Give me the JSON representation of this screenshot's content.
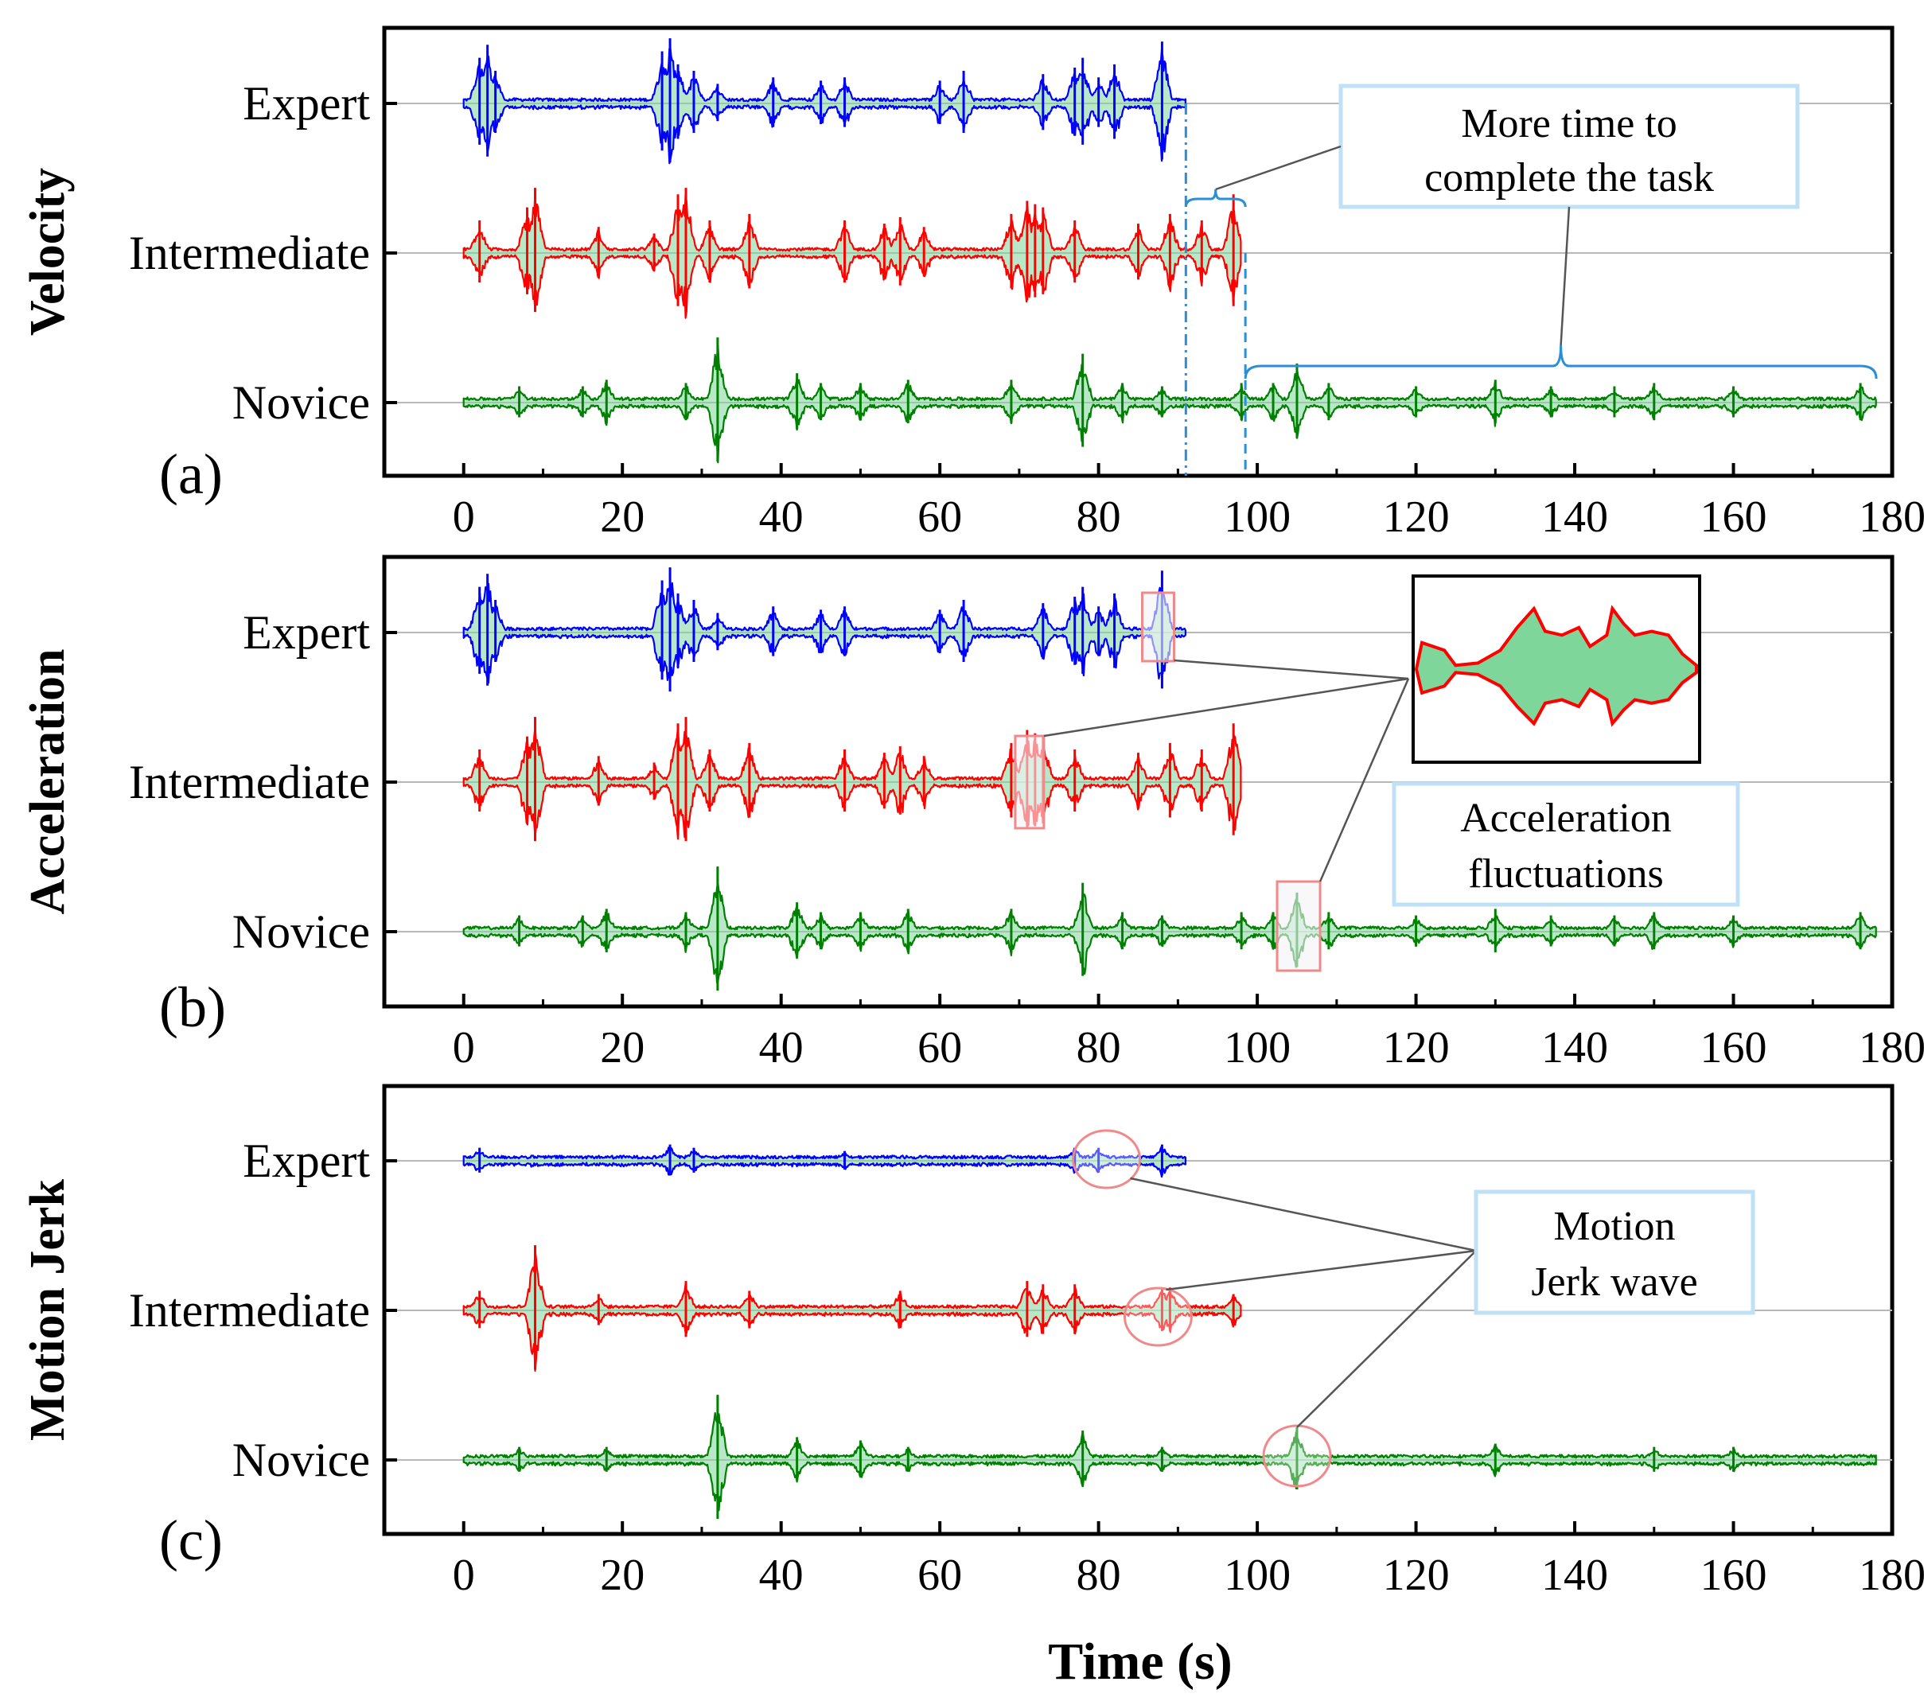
{
  "chart_data": {
    "type": "line",
    "xlabel": "Time (s)",
    "xlim": [
      -10,
      180
    ],
    "xticks": [
      "0",
      "20",
      "40",
      "60",
      "80",
      "100",
      "120",
      "140",
      "160",
      "180"
    ],
    "categories": [
      "Expert",
      "Intermediate",
      "Novice"
    ],
    "series_colors": {
      "Expert": "#0000ff",
      "Intermediate": "#ff0000",
      "Novice": "#008000"
    },
    "fill_color": "#7fd69a",
    "panels": [
      {
        "tag": "(a)",
        "ylabel": "Velocity",
        "series": [
          {
            "name": "Expert",
            "end_time": 91,
            "spikes": [
              [
                2,
                0.7
              ],
              [
                3,
                0.9
              ],
              [
                4,
                0.5
              ],
              [
                25,
                0.8
              ],
              [
                26,
                1.0
              ],
              [
                27,
                0.6
              ],
              [
                29,
                0.5
              ],
              [
                32,
                0.3
              ],
              [
                39,
                0.4
              ],
              [
                45,
                0.35
              ],
              [
                48,
                0.4
              ],
              [
                60,
                0.35
              ],
              [
                63,
                0.5
              ],
              [
                73,
                0.45
              ],
              [
                77,
                0.55
              ],
              [
                78,
                0.7
              ],
              [
                80,
                0.4
              ],
              [
                82,
                0.6
              ],
              [
                88,
                0.95
              ]
            ]
          },
          {
            "name": "Intermediate",
            "end_time": 98,
            "spikes": [
              [
                2,
                0.5
              ],
              [
                8,
                0.7
              ],
              [
                9,
                1.0
              ],
              [
                17,
                0.4
              ],
              [
                24,
                0.3
              ],
              [
                27,
                0.9
              ],
              [
                28,
                1.0
              ],
              [
                31,
                0.5
              ],
              [
                36,
                0.6
              ],
              [
                48,
                0.5
              ],
              [
                53,
                0.45
              ],
              [
                55,
                0.55
              ],
              [
                58,
                0.4
              ],
              [
                69,
                0.6
              ],
              [
                71,
                0.8
              ],
              [
                72,
                0.75
              ],
              [
                73,
                0.7
              ],
              [
                77,
                0.5
              ],
              [
                85,
                0.45
              ],
              [
                89,
                0.6
              ],
              [
                93,
                0.5
              ],
              [
                97,
                0.9
              ]
            ]
          },
          {
            "name": "Novice",
            "end_time": 178,
            "spikes": [
              [
                7,
                0.25
              ],
              [
                15,
                0.25
              ],
              [
                18,
                0.35
              ],
              [
                28,
                0.3
              ],
              [
                32,
                1.0
              ],
              [
                42,
                0.45
              ],
              [
                45,
                0.3
              ],
              [
                50,
                0.3
              ],
              [
                56,
                0.35
              ],
              [
                69,
                0.35
              ],
              [
                78,
                0.75
              ],
              [
                83,
                0.3
              ],
              [
                88,
                0.25
              ],
              [
                98,
                0.3
              ],
              [
                102,
                0.3
              ],
              [
                105,
                0.6
              ],
              [
                109,
                0.3
              ],
              [
                120,
                0.25
              ],
              [
                130,
                0.35
              ],
              [
                137,
                0.25
              ],
              [
                145,
                0.25
              ],
              [
                150,
                0.3
              ],
              [
                160,
                0.25
              ],
              [
                176,
                0.3
              ]
            ]
          }
        ],
        "annotations": [
          {
            "text": "More time to complete the task",
            "lines": [
              "More time to",
              "complete the task"
            ]
          }
        ]
      },
      {
        "tag": "(b)",
        "ylabel": "Acceleration",
        "series": [
          {
            "name": "Expert",
            "end_time": 91,
            "spikes": [
              [
                2,
                0.7
              ],
              [
                3,
                0.9
              ],
              [
                4,
                0.5
              ],
              [
                25,
                0.8
              ],
              [
                26,
                1.0
              ],
              [
                27,
                0.6
              ],
              [
                29,
                0.5
              ],
              [
                32,
                0.3
              ],
              [
                39,
                0.4
              ],
              [
                45,
                0.35
              ],
              [
                48,
                0.4
              ],
              [
                60,
                0.35
              ],
              [
                63,
                0.5
              ],
              [
                73,
                0.45
              ],
              [
                77,
                0.55
              ],
              [
                78,
                0.7
              ],
              [
                80,
                0.4
              ],
              [
                82,
                0.6
              ],
              [
                88,
                0.95
              ]
            ]
          },
          {
            "name": "Intermediate",
            "end_time": 98,
            "spikes": [
              [
                2,
                0.5
              ],
              [
                8,
                0.7
              ],
              [
                9,
                1.0
              ],
              [
                17,
                0.4
              ],
              [
                24,
                0.3
              ],
              [
                27,
                0.9
              ],
              [
                28,
                1.0
              ],
              [
                31,
                0.5
              ],
              [
                36,
                0.6
              ],
              [
                48,
                0.5
              ],
              [
                53,
                0.45
              ],
              [
                55,
                0.55
              ],
              [
                58,
                0.4
              ],
              [
                69,
                0.6
              ],
              [
                71,
                0.8
              ],
              [
                72,
                0.75
              ],
              [
                73,
                0.7
              ],
              [
                77,
                0.5
              ],
              [
                85,
                0.45
              ],
              [
                89,
                0.6
              ],
              [
                93,
                0.5
              ],
              [
                97,
                0.9
              ]
            ]
          },
          {
            "name": "Novice",
            "end_time": 178,
            "spikes": [
              [
                7,
                0.25
              ],
              [
                15,
                0.25
              ],
              [
                18,
                0.35
              ],
              [
                28,
                0.3
              ],
              [
                32,
                1.0
              ],
              [
                42,
                0.45
              ],
              [
                45,
                0.3
              ],
              [
                50,
                0.3
              ],
              [
                56,
                0.35
              ],
              [
                69,
                0.35
              ],
              [
                78,
                0.75
              ],
              [
                83,
                0.3
              ],
              [
                88,
                0.25
              ],
              [
                98,
                0.3
              ],
              [
                102,
                0.3
              ],
              [
                105,
                0.6
              ],
              [
                109,
                0.3
              ],
              [
                120,
                0.25
              ],
              [
                130,
                0.35
              ],
              [
                137,
                0.25
              ],
              [
                145,
                0.25
              ],
              [
                150,
                0.3
              ],
              [
                160,
                0.25
              ],
              [
                176,
                0.3
              ]
            ]
          }
        ],
        "annotations": [
          {
            "text": "Acceleration fluctuations",
            "lines": [
              "Acceleration",
              "fluctuations"
            ]
          }
        ]
      },
      {
        "tag": "(c)",
        "ylabel": "Motion Jerk",
        "series": [
          {
            "name": "Expert",
            "end_time": 91,
            "spikes": [
              [
                2,
                0.2
              ],
              [
                26,
                0.25
              ],
              [
                29,
                0.2
              ],
              [
                48,
                0.15
              ],
              [
                77,
                0.2
              ],
              [
                80,
                0.2
              ],
              [
                88,
                0.25
              ]
            ]
          },
          {
            "name": "Intermediate",
            "end_time": 98,
            "spikes": [
              [
                2,
                0.3
              ],
              [
                9,
                1.0
              ],
              [
                17,
                0.25
              ],
              [
                28,
                0.45
              ],
              [
                36,
                0.3
              ],
              [
                55,
                0.3
              ],
              [
                71,
                0.45
              ],
              [
                73,
                0.4
              ],
              [
                77,
                0.4
              ],
              [
                88,
                0.35
              ],
              [
                89,
                0.35
              ],
              [
                97,
                0.25
              ]
            ]
          },
          {
            "name": "Novice",
            "end_time": 178,
            "spikes": [
              [
                7,
                0.2
              ],
              [
                18,
                0.2
              ],
              [
                32,
                1.0
              ],
              [
                42,
                0.35
              ],
              [
                50,
                0.3
              ],
              [
                56,
                0.2
              ],
              [
                78,
                0.45
              ],
              [
                88,
                0.2
              ],
              [
                105,
                0.5
              ],
              [
                130,
                0.25
              ],
              [
                150,
                0.2
              ],
              [
                160,
                0.2
              ]
            ]
          }
        ],
        "annotations": [
          {
            "text": "Motion Jerk wave",
            "lines": [
              "Motion",
              "Jerk wave"
            ]
          }
        ]
      }
    ]
  }
}
